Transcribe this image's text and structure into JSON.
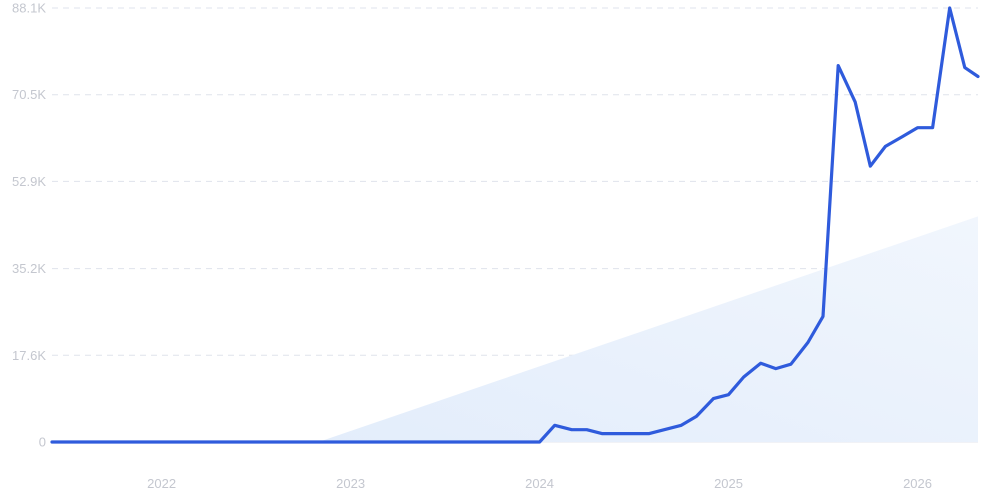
{
  "colors": {
    "line": "#2f5bdc",
    "trend_fill_start": "#e3edfb",
    "trend_fill_end": "#f1f6fd",
    "grid": "#dfe3ec",
    "tick_text": "#c4c7cf"
  },
  "chart_data": {
    "type": "line",
    "title": "",
    "xlabel": "",
    "ylabel": "",
    "grid": true,
    "legend": "none",
    "xlim": [
      2021.42,
      2026.32
    ],
    "ylim": [
      0,
      88100
    ],
    "x_ticks": [
      {
        "value": 2022,
        "label": "2022"
      },
      {
        "value": 2023,
        "label": "2023"
      },
      {
        "value": 2024,
        "label": "2024"
      },
      {
        "value": 2025,
        "label": "2025"
      },
      {
        "value": 2026,
        "label": "2026"
      }
    ],
    "y_ticks": [
      {
        "value": 0,
        "label": "0"
      },
      {
        "value": 17600,
        "label": "17.6K"
      },
      {
        "value": 35200,
        "label": "35.2K"
      },
      {
        "value": 52900,
        "label": "52.9K"
      },
      {
        "value": 70500,
        "label": "70.5K"
      },
      {
        "value": 88100,
        "label": "88.1K"
      }
    ],
    "series": [
      {
        "x": [
          2021.42,
          2023.5,
          2024.0,
          2024.08,
          2024.17,
          2024.25,
          2024.33,
          2024.42,
          2024.5,
          2024.58,
          2024.67,
          2024.75,
          2024.83,
          2024.92,
          2025.0,
          2025.08,
          2025.17,
          2025.25,
          2025.33,
          2025.42,
          2025.5,
          2025.58,
          2025.67,
          2025.75,
          2025.83,
          2025.92,
          2026.0,
          2026.08,
          2026.17,
          2026.25,
          2026.32
        ],
        "values": [
          0,
          0,
          0,
          3400,
          2500,
          2500,
          1700,
          1700,
          1700,
          1700,
          2600,
          3400,
          5200,
          8800,
          9600,
          13200,
          16000,
          14900,
          15800,
          20200,
          25500,
          76400,
          69000,
          56000,
          60000,
          62000,
          63800,
          63800,
          88100,
          76000,
          74200
        ]
      },
      {
        "x": [
          2022.83,
          2026.32
        ],
        "values": [
          0,
          45800
        ]
      }
    ]
  }
}
